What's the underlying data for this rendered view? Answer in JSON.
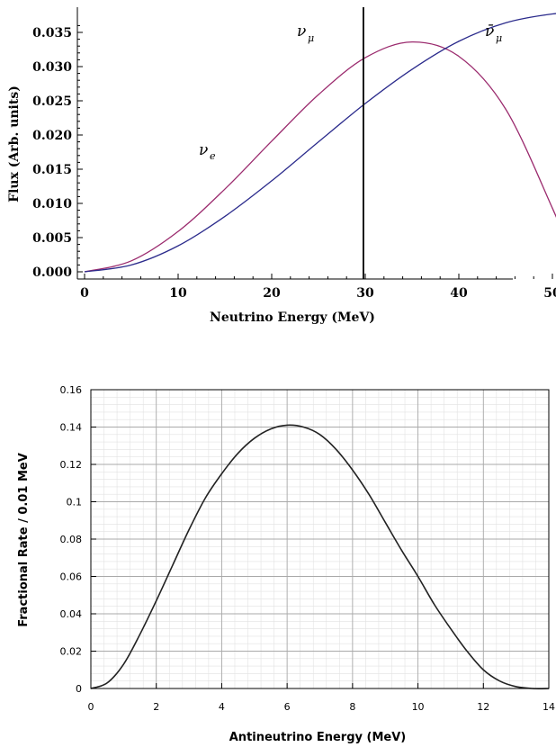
{
  "chart_data": [
    {
      "type": "line",
      "xlabel": "Neutrino Energy (MeV)",
      "ylabel": "Flux (Arb. units)",
      "xlim": [
        0,
        53
      ],
      "ylim": [
        0,
        0.037
      ],
      "x_ticks": [
        "0",
        "10",
        "20",
        "30",
        "40",
        "50"
      ],
      "y_ticks": [
        "0.000",
        "0.005",
        "0.010",
        "0.015",
        "0.020",
        "0.025",
        "0.030",
        "0.035"
      ],
      "grid": false,
      "series": [
        {
          "name": "ν_e",
          "color": "#9b2b6e",
          "x": [
            0,
            5,
            10,
            15,
            20,
            25,
            30,
            35,
            40,
            45,
            50,
            52.8
          ],
          "y": [
            0,
            0.0016,
            0.0059,
            0.0121,
            0.0191,
            0.0259,
            0.0313,
            0.0336,
            0.0315,
            0.0238,
            0.0093,
            0
          ]
        },
        {
          "name": "ν̄_μ",
          "color": "#2b2b8c",
          "x": [
            0,
            5,
            10,
            15,
            20,
            25,
            30,
            35,
            40,
            45,
            50,
            52.8
          ],
          "y": [
            0,
            0.001,
            0.0038,
            0.0081,
            0.0133,
            0.019,
            0.0246,
            0.0296,
            0.0337,
            0.0364,
            0.0377,
            0.0378
          ]
        },
        {
          "name": "ν_μ",
          "color": "#000000",
          "x": [
            29.8,
            29.8
          ],
          "y": [
            0,
            0.037
          ]
        }
      ],
      "annotations": [
        {
          "base": "ν",
          "sub": "e"
        },
        {
          "base": "ν",
          "sub": "μ"
        },
        {
          "base": "ν̄",
          "sub": "μ"
        }
      ]
    },
    {
      "type": "line",
      "xlabel": "Antineutrino Energy (MeV)",
      "ylabel": "Fractional Rate / 0.01 MeV",
      "xlim": [
        0,
        14
      ],
      "ylim": [
        0,
        0.16
      ],
      "x_ticks": [
        "0",
        "2",
        "4",
        "6",
        "8",
        "10",
        "12",
        "14"
      ],
      "y_ticks": [
        "0",
        "0.02",
        "0.04",
        "0.06",
        "0.08",
        "0.1",
        "0.12",
        "0.14",
        "0.16"
      ],
      "grid": true,
      "series": [
        {
          "color": "#222222",
          "x": [
            0,
            0.5,
            1,
            1.5,
            2,
            2.5,
            3,
            3.5,
            4,
            4.5,
            5,
            5.5,
            6,
            6.5,
            7,
            7.5,
            8,
            8.5,
            9,
            9.5,
            10,
            10.5,
            11,
            11.5,
            12,
            12.5,
            13,
            13.5,
            14
          ],
          "y": [
            0,
            0.003,
            0.013,
            0.029,
            0.047,
            0.066,
            0.085,
            0.102,
            0.115,
            0.126,
            0.134,
            0.139,
            0.141,
            0.14,
            0.136,
            0.128,
            0.117,
            0.104,
            0.089,
            0.074,
            0.06,
            0.045,
            0.032,
            0.02,
            0.01,
            0.004,
            0.001,
            0,
            0
          ]
        }
      ]
    }
  ]
}
